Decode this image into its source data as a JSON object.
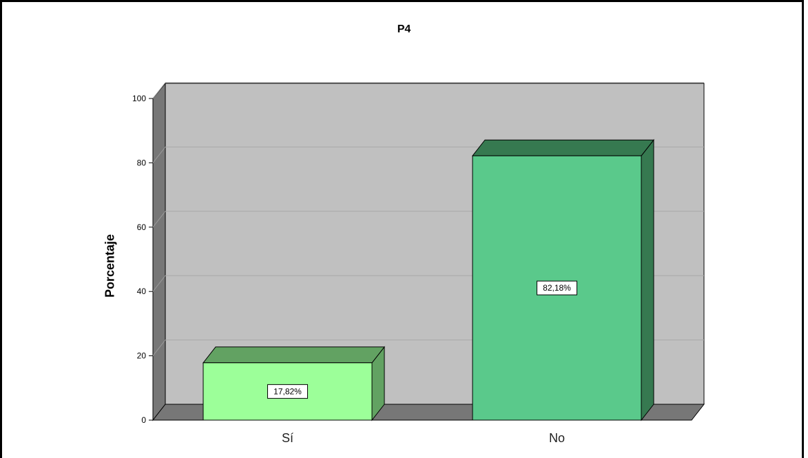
{
  "chart_data": {
    "type": "bar",
    "title": "P4",
    "xlabel": "",
    "ylabel": "Porcentaje",
    "categories": [
      "Sí",
      "No"
    ],
    "values": [
      17.82,
      82.18
    ],
    "data_labels": [
      "17,82%",
      "82,18%"
    ],
    "yticks": [
      "0",
      "20",
      "40",
      "60",
      "80",
      "100"
    ],
    "ylim": [
      0,
      100
    ],
    "grid": true,
    "legend": "none"
  },
  "colors": {
    "wall": "#c0c0c0",
    "wall_side": "#777777",
    "bar_si_front": "#9cff99",
    "bar_si_top": "#62a262",
    "bar_no_front": "#5ac98b",
    "bar_no_top": "#367950"
  }
}
